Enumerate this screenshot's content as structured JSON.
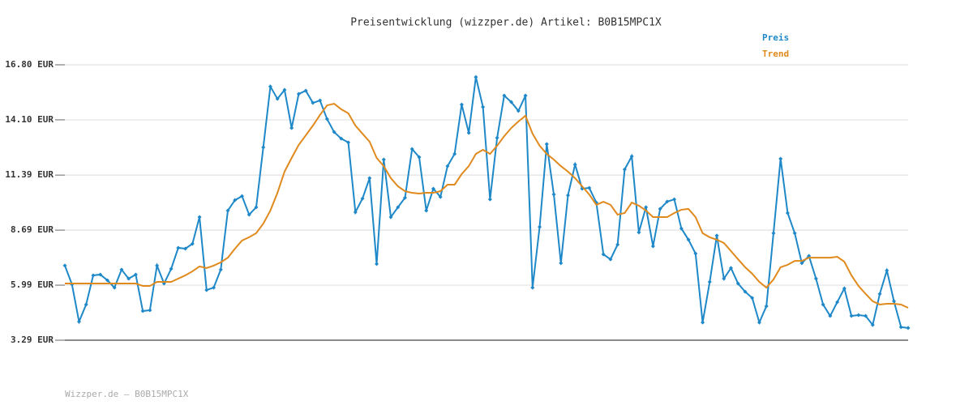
{
  "chart_data": {
    "type": "line",
    "title": "Preisentwicklung (wizzper.de) Artikel: B0B15MPC1X",
    "footer": "Wizzper.de – B0B15MPC1X",
    "legend": "top-right",
    "grid": true,
    "ylim": [
      3.29,
      16.8
    ],
    "yticks": [
      {
        "value": 3.29,
        "label": "3.29 EUR"
      },
      {
        "value": 5.99,
        "label": "5.99 EUR"
      },
      {
        "value": 8.69,
        "label": "8.69 EUR"
      },
      {
        "value": 11.39,
        "label": "11.39 EUR"
      },
      {
        "value": 14.1,
        "label": "14.10 EUR"
      },
      {
        "value": 16.8,
        "label": "16.80 EUR"
      }
    ],
    "series": [
      {
        "name": "Preis",
        "color": "#1e88c8",
        "markers": true,
        "values": [
          6.95,
          6.03,
          4.2,
          5.04,
          6.47,
          6.51,
          6.23,
          5.87,
          6.75,
          6.31,
          6.51,
          4.72,
          4.76,
          6.95,
          6.07,
          6.79,
          7.82,
          7.78,
          8.02,
          9.33,
          5.75,
          5.87,
          6.75,
          9.65,
          10.16,
          10.36,
          9.45,
          9.81,
          12.75,
          15.73,
          15.13,
          15.57,
          13.7,
          15.37,
          15.53,
          14.93,
          15.05,
          14.14,
          13.5,
          13.18,
          12.99,
          9.57,
          10.24,
          11.24,
          7.03,
          12.15,
          9.33,
          9.81,
          10.28,
          12.67,
          12.27,
          9.65,
          10.72,
          10.32,
          11.83,
          12.43,
          14.85,
          13.46,
          16.2,
          14.73,
          10.2,
          13.22,
          15.29,
          14.97,
          14.54,
          15.29,
          5.87,
          8.85,
          12.91,
          10.44,
          7.07,
          10.4,
          11.91,
          10.72,
          10.76,
          10.04,
          7.5,
          7.26,
          7.98,
          11.67,
          12.31,
          8.58,
          9.81,
          7.9,
          9.73,
          10.09,
          10.2,
          8.77,
          8.22,
          7.54,
          4.16,
          6.15,
          8.42,
          6.31,
          6.83,
          6.07,
          5.67,
          5.36,
          4.16,
          4.96,
          8.54,
          12.19,
          9.53,
          8.54,
          7.07,
          7.42,
          6.31,
          5.04,
          4.48,
          5.16,
          5.83,
          4.48,
          4.52,
          4.48,
          4.04,
          5.56,
          6.71,
          5.2,
          3.93,
          3.89
        ]
      },
      {
        "name": "Trend",
        "color": "#e08a1e",
        "markers": false,
        "values": [
          6.07,
          6.07,
          6.07,
          6.07,
          6.07,
          6.07,
          6.07,
          6.07,
          6.07,
          6.07,
          6.07,
          5.95,
          5.95,
          6.15,
          6.15,
          6.15,
          6.31,
          6.47,
          6.67,
          6.91,
          6.83,
          6.95,
          7.11,
          7.34,
          7.78,
          8.18,
          8.34,
          8.54,
          9.01,
          9.65,
          10.52,
          11.56,
          12.23,
          12.87,
          13.34,
          13.82,
          14.34,
          14.81,
          14.89,
          14.62,
          14.42,
          13.82,
          13.42,
          13.03,
          12.23,
          11.83,
          11.24,
          10.84,
          10.6,
          10.52,
          10.48,
          10.52,
          10.52,
          10.6,
          10.92,
          10.92,
          11.44,
          11.83,
          12.43,
          12.63,
          12.43,
          12.83,
          13.3,
          13.7,
          14.02,
          14.3,
          13.42,
          12.83,
          12.43,
          12.15,
          11.83,
          11.56,
          11.24,
          10.84,
          10.44,
          9.93,
          10.08,
          9.93,
          9.45,
          9.53,
          10.04,
          9.89,
          9.65,
          9.33,
          9.33,
          9.33,
          9.53,
          9.69,
          9.73,
          9.33,
          8.54,
          8.34,
          8.22,
          8.06,
          7.66,
          7.26,
          6.87,
          6.55,
          6.15,
          5.87,
          6.27,
          6.87,
          6.99,
          7.18,
          7.18,
          7.34,
          7.34,
          7.34,
          7.34,
          7.38,
          7.14,
          6.47,
          5.95,
          5.56,
          5.2,
          5.04,
          5.08,
          5.08,
          5.04,
          4.88
        ]
      }
    ]
  }
}
